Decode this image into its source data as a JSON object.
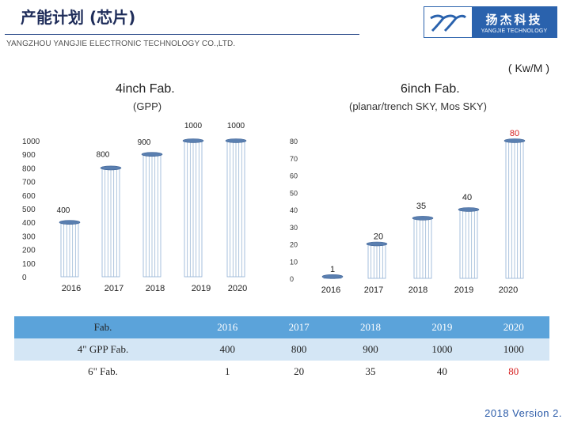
{
  "header": {
    "title": "产能计划 (芯片)",
    "subtitle": "YANGZHOU YANGJIE ELECTRONIC TECHNOLOGY CO.,LTD.",
    "unit": "( Kw/M )"
  },
  "logo": {
    "name_cn": "扬杰科技",
    "name_en": "YANGJIE TECHNOLOGY",
    "mark": "logo-mark-icon"
  },
  "chart_data": [
    {
      "type": "bar",
      "title": "4inch Fab.",
      "subtitle": "(GPP)",
      "categories": [
        "2016",
        "2017",
        "2018",
        "2019",
        "2020"
      ],
      "values": [
        400,
        800,
        900,
        1000,
        1000
      ],
      "ylim": [
        0,
        1000
      ],
      "yticks": [
        0,
        100,
        200,
        300,
        400,
        500,
        600,
        700,
        800,
        900,
        1000
      ],
      "bar_color": "#9bb8d6",
      "label_color": "#222222",
      "grid": false
    },
    {
      "type": "bar",
      "title": "6inch Fab.",
      "subtitle": "(planar/trench SKY, Mos SKY)",
      "categories": [
        "2016",
        "2017",
        "2018",
        "2019",
        "2020"
      ],
      "values": [
        1,
        20,
        35,
        40,
        80
      ],
      "ylim": [
        0,
        80
      ],
      "yticks": [
        0,
        10,
        20,
        30,
        40,
        50,
        60,
        70,
        80
      ],
      "bar_color": "#9bb8d6",
      "label_color": "#222222",
      "highlight_label_color": "#d62020",
      "grid": false
    }
  ],
  "table": {
    "header": [
      "Fab.",
      "2016",
      "2017",
      "2018",
      "2019",
      "2020"
    ],
    "rows": [
      {
        "label": "4\" GPP Fab.",
        "values": [
          "400",
          "800",
          "900",
          "1000",
          "1000"
        ]
      },
      {
        "label": "6\" Fab.",
        "values": [
          "1",
          "20",
          "35",
          "40",
          "80"
        ]
      }
    ],
    "highlight_color": "#d62020"
  },
  "footer": {
    "version": "2018 Version 2."
  }
}
